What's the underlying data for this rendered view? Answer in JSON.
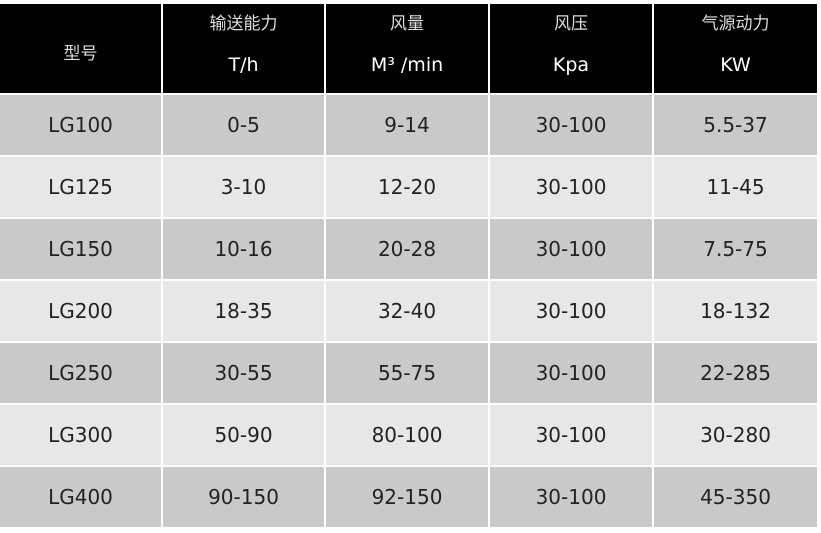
{
  "table": {
    "header": [
      {
        "label": "型号"
      },
      {
        "label": "输送能力",
        "unit": "T/h"
      },
      {
        "label": "风量",
        "unit": "M³ /min"
      },
      {
        "label": "风压",
        "unit": "Kpa"
      },
      {
        "label": "气源动力",
        "unit": "KW"
      }
    ],
    "rows": [
      [
        "LG100",
        "0-5",
        "9-14",
        "30-100",
        "5.5-37"
      ],
      [
        "LG125",
        "3-10",
        "12-20",
        "30-100",
        "11-45"
      ],
      [
        "LG150",
        "10-16",
        "20-28",
        "30-100",
        "7.5-75"
      ],
      [
        "LG200",
        "18-35",
        "32-40",
        "30-100",
        "18-132"
      ],
      [
        "LG250",
        "30-55",
        "55-75",
        "30-100",
        "22-285"
      ],
      [
        "LG300",
        "50-90",
        "80-100",
        "30-100",
        "30-280"
      ],
      [
        "LG400",
        "90-150",
        "92-150",
        "30-100",
        "45-350"
      ]
    ]
  }
}
